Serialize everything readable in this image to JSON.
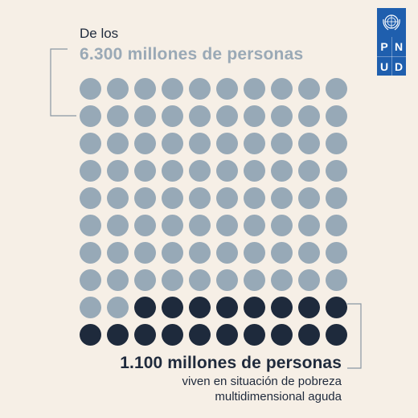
{
  "header": {
    "prefix": "De los",
    "total": "6.300 millones de personas"
  },
  "logo": {
    "letters": [
      "P",
      "N",
      "U",
      "D"
    ],
    "color": "#1f5fae",
    "icon": "un-emblem-icon"
  },
  "waffle": {
    "total_dots": 100,
    "highlighted_dots": 18,
    "columns": 10,
    "rows": 10,
    "base_color": "#97a9b7",
    "highlight_color": "#1e2a3c"
  },
  "footer": {
    "headline": "1.100 millones de personas",
    "line1": "viven en situación de pobreza",
    "line2": "multidimensional aguda"
  },
  "colors": {
    "background": "#f6efe6",
    "bracket": "#8a97a3"
  }
}
